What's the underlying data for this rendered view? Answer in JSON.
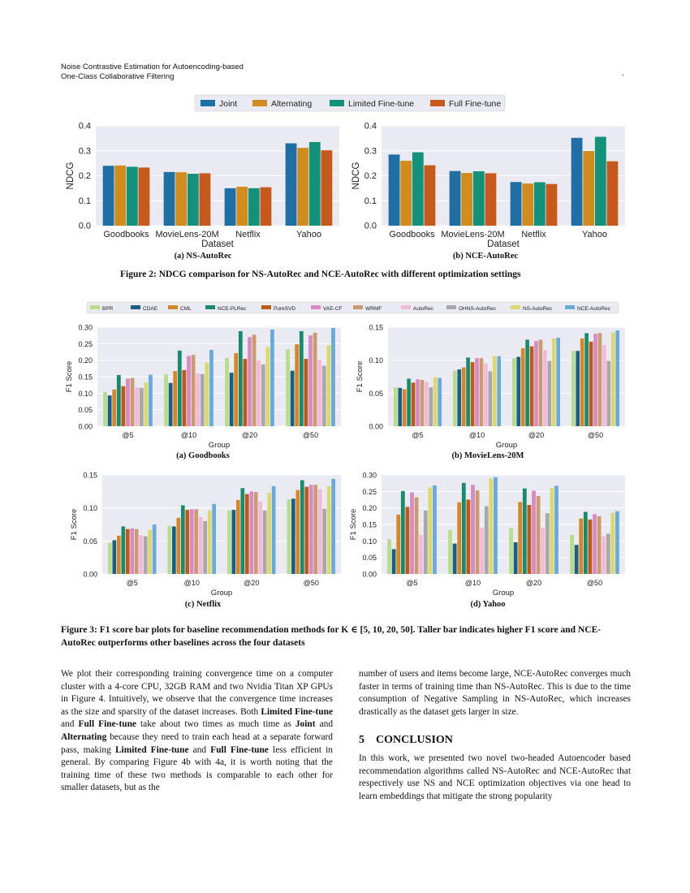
{
  "header": {
    "line1": "Noise Contrastive Estimation for Autoencoding-based",
    "line2": "One-Class Collaborative Filtering",
    "mark": "’"
  },
  "figure2": {
    "legend": [
      "Joint",
      "Alternating",
      "Limited Fine-tune",
      "Full Fine-tune"
    ],
    "colors": [
      "#1f6fa5",
      "#d08c1f",
      "#14917a",
      "#c65a1c"
    ],
    "caption": "Figure 2: NDCG comparison for NS-AutoRec and NCE-AutoRec with different optimization settings"
  },
  "figure3": {
    "legend": [
      "BPR",
      "CDAE",
      "CML",
      "NCE-PLRec",
      "PureSVD",
      "VAE-CF",
      "WRMF",
      "AutoRec",
      "OHNS-AutoRec",
      "NS-AutoRec",
      "NCE-AutoRec"
    ],
    "colors": [
      "#b8dc8e",
      "#1c5f83",
      "#d3872a",
      "#1b8a6b",
      "#bb5a1d",
      "#d88bc1",
      "#cc9a72",
      "#f4b9d8",
      "#a8a8a8",
      "#dbd86f",
      "#6aaad8"
    ],
    "caption": "Figure 3: F1 score bar plots for baseline recommendation methods for K ∈ [5, 10, 20, 50]. Taller bar indicates higher F1 score and NCE-AutoRec outperforms other baselines across the four datasets"
  },
  "chart_data": [
    {
      "type": "bar",
      "subcaption": "(a) NS-AutoRec",
      "xlabel": "Dataset",
      "ylabel": "NDCG",
      "ylim": [
        0,
        0.4
      ],
      "yticks": [
        0.0,
        0.1,
        0.2,
        0.3,
        0.4
      ],
      "categories": [
        "Goodbooks",
        "MovieLens-20M",
        "Netflix",
        "Yahoo"
      ],
      "series": [
        {
          "name": "Joint",
          "values": [
            0.24,
            0.215,
            0.15,
            0.33
          ]
        },
        {
          "name": "Alternating",
          "values": [
            0.241,
            0.214,
            0.156,
            0.312
          ]
        },
        {
          "name": "Limited Fine-tune",
          "values": [
            0.236,
            0.208,
            0.15,
            0.335
          ]
        },
        {
          "name": "Full Fine-tune",
          "values": [
            0.233,
            0.21,
            0.154,
            0.302
          ]
        }
      ]
    },
    {
      "type": "bar",
      "subcaption": "(b) NCE-AutoRec",
      "xlabel": "Dataset",
      "ylabel": "NDCG",
      "ylim": [
        0,
        0.4
      ],
      "yticks": [
        0.0,
        0.1,
        0.2,
        0.3,
        0.4
      ],
      "categories": [
        "Goodbooks",
        "MovieLens-20M",
        "Netflix",
        "Yahoo"
      ],
      "series": [
        {
          "name": "Joint",
          "values": [
            0.285,
            0.219,
            0.175,
            0.352
          ]
        },
        {
          "name": "Alternating",
          "values": [
            0.26,
            0.211,
            0.169,
            0.299
          ]
        },
        {
          "name": "Limited Fine-tune",
          "values": [
            0.294,
            0.218,
            0.174,
            0.356
          ]
        },
        {
          "name": "Full Fine-tune",
          "values": [
            0.242,
            0.21,
            0.167,
            0.258
          ]
        }
      ]
    },
    {
      "type": "bar",
      "subcaption": "(a) Goodbooks",
      "xlabel": "Group",
      "ylabel": "F1 Score",
      "ylim": [
        0,
        0.3
      ],
      "yticks": [
        0.0,
        0.05,
        0.1,
        0.15,
        0.2,
        0.25,
        0.3
      ],
      "categories": [
        "@5",
        "@10",
        "@20",
        "@50"
      ],
      "series": [
        {
          "name": "BPR",
          "values": [
            0.104,
            0.157,
            0.207,
            0.233
          ]
        },
        {
          "name": "CDAE",
          "values": [
            0.093,
            0.131,
            0.162,
            0.168
          ]
        },
        {
          "name": "CML",
          "values": [
            0.111,
            0.167,
            0.221,
            0.248
          ]
        },
        {
          "name": "NCE-PLRec",
          "values": [
            0.155,
            0.229,
            0.288,
            0.288
          ]
        },
        {
          "name": "PureSVD",
          "values": [
            0.121,
            0.17,
            0.204,
            0.204
          ]
        },
        {
          "name": "VAE-CF",
          "values": [
            0.144,
            0.213,
            0.27,
            0.275
          ]
        },
        {
          "name": "WRMF",
          "values": [
            0.146,
            0.216,
            0.277,
            0.283
          ]
        },
        {
          "name": "AutoRec",
          "values": [
            0.118,
            0.16,
            0.2,
            0.201
          ]
        },
        {
          "name": "OHNS-AutoRec",
          "values": [
            0.116,
            0.158,
            0.187,
            0.183
          ]
        },
        {
          "name": "NS-AutoRec",
          "values": [
            0.132,
            0.192,
            0.24,
            0.245
          ]
        },
        {
          "name": "NCE-AutoRec",
          "values": [
            0.156,
            0.231,
            0.293,
            0.298
          ]
        }
      ]
    },
    {
      "type": "bar",
      "subcaption": "(b) MovieLens-20M",
      "xlabel": "Group",
      "ylabel": "F1 Score",
      "ylim": [
        0,
        0.15
      ],
      "yticks": [
        0.0,
        0.05,
        0.1,
        0.15
      ],
      "categories": [
        "@5",
        "@10",
        "@20",
        "@50"
      ],
      "series": [
        {
          "name": "BPR",
          "values": [
            0.059,
            0.084,
            0.103,
            0.114
          ]
        },
        {
          "name": "CDAE",
          "values": [
            0.058,
            0.086,
            0.105,
            0.114
          ]
        },
        {
          "name": "CML",
          "values": [
            0.056,
            0.089,
            0.118,
            0.133
          ]
        },
        {
          "name": "NCE-PLRec",
          "values": [
            0.072,
            0.104,
            0.131,
            0.141
          ]
        },
        {
          "name": "PureSVD",
          "values": [
            0.066,
            0.097,
            0.121,
            0.128
          ]
        },
        {
          "name": "VAE-CF",
          "values": [
            0.071,
            0.103,
            0.129,
            0.14
          ]
        },
        {
          "name": "WRMF",
          "values": [
            0.07,
            0.103,
            0.131,
            0.141
          ]
        },
        {
          "name": "AutoRec",
          "values": [
            0.067,
            0.095,
            0.115,
            0.123
          ]
        },
        {
          "name": "OHNS-AutoRec",
          "values": [
            0.059,
            0.083,
            0.099,
            0.099
          ]
        },
        {
          "name": "NS-AutoRec",
          "values": [
            0.074,
            0.106,
            0.133,
            0.142
          ]
        },
        {
          "name": "NCE-AutoRec",
          "values": [
            0.073,
            0.106,
            0.134,
            0.145
          ]
        }
      ]
    },
    {
      "type": "bar",
      "subcaption": "(c) Netflix",
      "xlabel": "Group",
      "ylabel": "F1 Score",
      "ylim": [
        0,
        0.15
      ],
      "yticks": [
        0.0,
        0.05,
        0.1,
        0.15
      ],
      "categories": [
        "@5",
        "@10",
        "@20",
        "@50"
      ],
      "series": [
        {
          "name": "BPR",
          "values": [
            0.047,
            0.073,
            0.096,
            0.113
          ]
        },
        {
          "name": "CDAE",
          "values": [
            0.051,
            0.072,
            0.097,
            0.114
          ]
        },
        {
          "name": "CML",
          "values": [
            0.058,
            0.085,
            0.112,
            0.127
          ]
        },
        {
          "name": "NCE-PLRec",
          "values": [
            0.072,
            0.104,
            0.13,
            0.142
          ]
        },
        {
          "name": "PureSVD",
          "values": [
            0.068,
            0.097,
            0.121,
            0.132
          ]
        },
        {
          "name": "VAE-CF",
          "values": [
            0.069,
            0.098,
            0.125,
            0.135
          ]
        },
        {
          "name": "WRMF",
          "values": [
            0.068,
            0.098,
            0.124,
            0.135
          ]
        },
        {
          "name": "AutoRec",
          "values": [
            0.059,
            0.086,
            0.11,
            0.128
          ]
        },
        {
          "name": "OHNS-AutoRec",
          "values": [
            0.057,
            0.08,
            0.096,
            0.099
          ]
        },
        {
          "name": "NS-AutoRec",
          "values": [
            0.067,
            0.096,
            0.123,
            0.133
          ]
        },
        {
          "name": "NCE-AutoRec",
          "values": [
            0.075,
            0.106,
            0.133,
            0.144
          ]
        }
      ]
    },
    {
      "type": "bar",
      "subcaption": "(d) Yahoo",
      "xlabel": "Group",
      "ylabel": "F1 Score",
      "ylim": [
        0,
        0.3
      ],
      "yticks": [
        0.0,
        0.05,
        0.1,
        0.15,
        0.2,
        0.25,
        0.3
      ],
      "categories": [
        "@5",
        "@10",
        "@20",
        "@50"
      ],
      "series": [
        {
          "name": "BPR",
          "values": [
            0.105,
            0.133,
            0.138,
            0.118
          ]
        },
        {
          "name": "CDAE",
          "values": [
            0.075,
            0.092,
            0.096,
            0.088
          ]
        },
        {
          "name": "CML",
          "values": [
            0.18,
            0.217,
            0.218,
            0.168
          ]
        },
        {
          "name": "NCE-PLRec",
          "values": [
            0.251,
            0.276,
            0.259,
            0.188
          ]
        },
        {
          "name": "PureSVD",
          "values": [
            0.203,
            0.225,
            0.209,
            0.165
          ]
        },
        {
          "name": "VAE-CF",
          "values": [
            0.247,
            0.27,
            0.252,
            0.181
          ]
        },
        {
          "name": "WRMF",
          "values": [
            0.232,
            0.253,
            0.236,
            0.175
          ]
        },
        {
          "name": "AutoRec",
          "values": [
            0.118,
            0.14,
            0.14,
            0.114
          ]
        },
        {
          "name": "OHNS-AutoRec",
          "values": [
            0.192,
            0.205,
            0.184,
            0.122
          ]
        },
        {
          "name": "NS-AutoRec",
          "values": [
            0.262,
            0.289,
            0.26,
            0.185
          ]
        },
        {
          "name": "NCE-AutoRec",
          "values": [
            0.268,
            0.293,
            0.267,
            0.19
          ]
        }
      ]
    }
  ],
  "body": {
    "left_paragraph_html": "We plot their corresponding training convergence time on a computer cluster with a 4-core CPU, 32GB RAM and two Nvidia Titan XP GPUs in Figure 4. Intuitively, we observe that the convergence time increases as the size and sparsity of the dataset increases. Both <b>Limited Fine-tune</b> and <b>Full Fine-tune</b> take about two times as much time as <b>Joint</b> and <b>Alternating</b> because they need to train each head at a separate forward pass, making <b>Limited Fine-tune</b> and <b>Full Fine-tune</b> less efficient in general. By comparing Figure 4b with 4a, it is worth noting that the training time of these two methods is comparable to each other for smaller datasets, but as the",
    "right_paragraph": "number of users and items become large, NCE-AutoRec converges much faster in terms of training time than NS-AutoRec. This is due to the time consumption of Negative Sampling in NS-AutoRec, which increases drastically as the dataset gets larger in size.",
    "section_number": "5",
    "section_title": "CONCLUSION",
    "conclusion": "In this work, we presented two novel two-headed Autoencoder based recommendation algorithms called NS-AutoRec and NCE-AutoRec that respectively use NS and NCE optimization objectives via one head to learn embeddings that mitigate the strong popularity"
  }
}
